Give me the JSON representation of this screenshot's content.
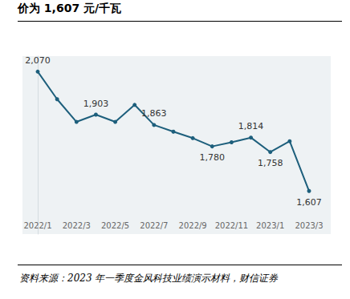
{
  "chart_data": {
    "type": "line",
    "title": "价为 1,607 元/千瓦",
    "source": "资料来源：2023 年一季度金风科技业绩演示材料，财信证券",
    "categories": [
      "2022/1",
      null,
      "2022/3",
      null,
      "2022/5",
      null,
      "2022/7",
      null,
      "2022/9",
      null,
      "2022/11",
      null,
      "2023/1",
      null,
      "2023/3"
    ],
    "values": [
      2070,
      1963,
      1875,
      1903,
      1875,
      1941,
      1863,
      1837,
      1812,
      1780,
      1796,
      1814,
      1758,
      1800,
      1607
    ],
    "value_labels": [
      "2,070",
      null,
      null,
      "1,903",
      null,
      null,
      "1,863",
      null,
      null,
      "1,780",
      null,
      "1,814",
      "1,758",
      null,
      "1,607"
    ],
    "data_labels": true,
    "color": "#1d5f7c",
    "marker": "circle",
    "ylim": [
      1440,
      2130
    ],
    "tick_labels": "x",
    "grid": false
  }
}
